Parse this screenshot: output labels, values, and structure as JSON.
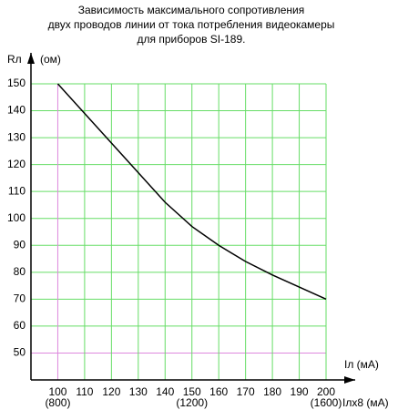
{
  "chart_data": {
    "type": "line",
    "title": [
      "Зависимость максимального сопротивления",
      "двух проводов линии от тока потребления видеокамеры",
      "для приборов SI-189."
    ],
    "y_label": "Rл",
    "y_unit": "(ом)",
    "x_label": "Iл (мА)",
    "x2_label": "Iлх8 (мА)",
    "x": [
      100,
      110,
      120,
      130,
      140,
      150,
      160,
      170,
      180,
      190,
      200
    ],
    "values": [
      150,
      139,
      128,
      117,
      106,
      97,
      90,
      84,
      79,
      74.5,
      70
    ],
    "color": "#000000",
    "xlim": [
      90,
      200
    ],
    "ylim": [
      40,
      150
    ],
    "xticks": [
      100,
      110,
      120,
      130,
      140,
      150,
      160,
      170,
      180,
      190,
      200
    ],
    "x2ticks": [
      {
        "value": 100,
        "label": "(800)"
      },
      {
        "value": 150,
        "label": "(1200)"
      },
      {
        "value": 200,
        "label": "(1600)"
      }
    ],
    "yticks": [
      50,
      60,
      70,
      80,
      90,
      100,
      110,
      120,
      130,
      140,
      150
    ],
    "grid": true,
    "grid_color": "#66dd66",
    "highlight": {
      "x": 100,
      "y": 50,
      "color": "#dd88dd"
    }
  }
}
